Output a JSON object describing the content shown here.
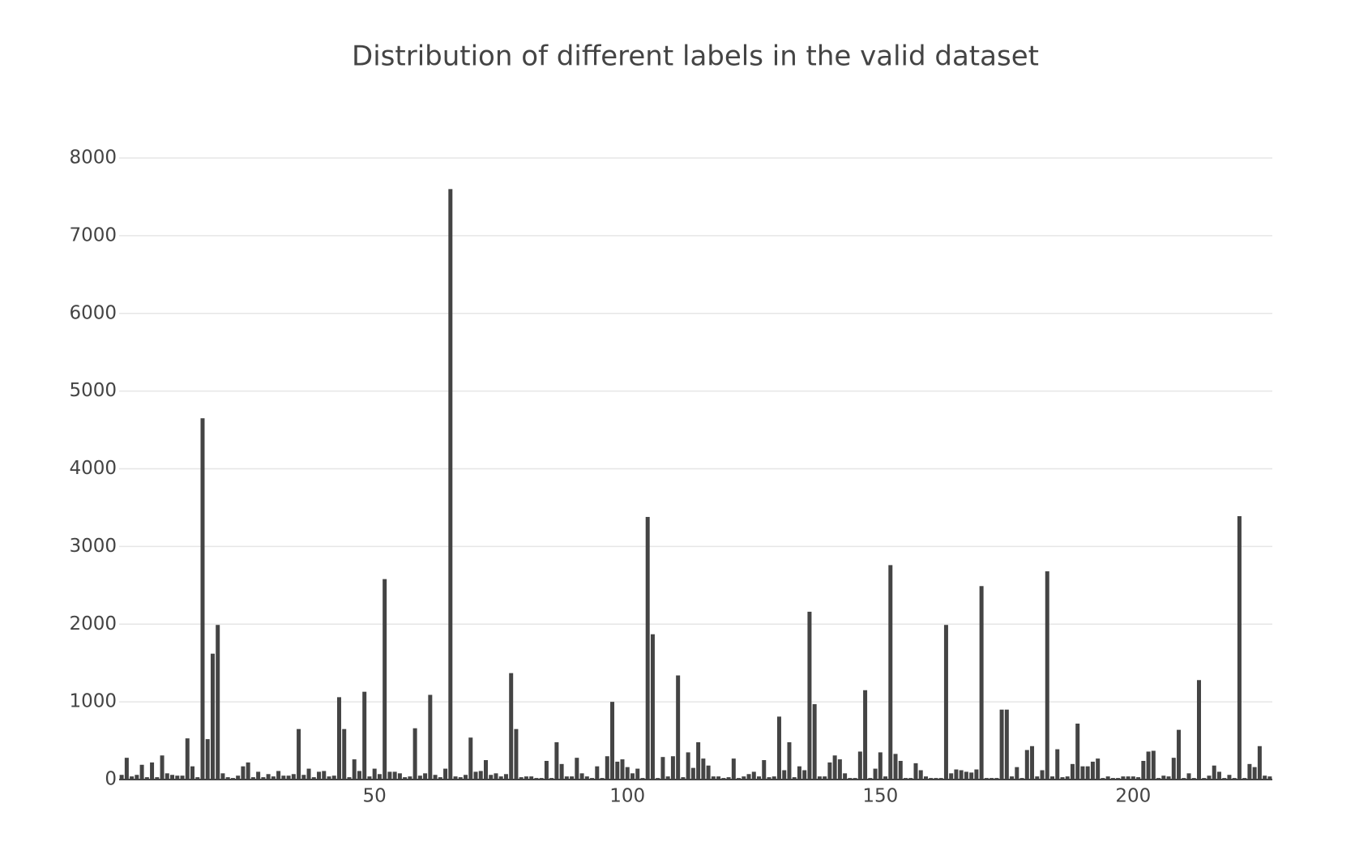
{
  "chart_data": {
    "type": "bar",
    "title": "Distribution of different labels in the valid dataset",
    "x": [
      0,
      1,
      2,
      3,
      4,
      5,
      6,
      7,
      8,
      9,
      10,
      11,
      12,
      13,
      14,
      15,
      16,
      17,
      18,
      19,
      20,
      21,
      22,
      23,
      24,
      25,
      26,
      27,
      28,
      29,
      30,
      31,
      32,
      33,
      34,
      35,
      36,
      37,
      38,
      39,
      40,
      41,
      42,
      43,
      44,
      45,
      46,
      47,
      48,
      49,
      50,
      51,
      52,
      53,
      54,
      55,
      56,
      57,
      58,
      59,
      60,
      61,
      62,
      63,
      64,
      65,
      66,
      67,
      68,
      69,
      70,
      71,
      72,
      73,
      74,
      75,
      76,
      77,
      78,
      79,
      80,
      81,
      82,
      83,
      84,
      85,
      86,
      87,
      88,
      89,
      90,
      91,
      92,
      93,
      94,
      95,
      96,
      97,
      98,
      99,
      100,
      101,
      102,
      103,
      104,
      105,
      106,
      107,
      108,
      109,
      110,
      111,
      112,
      113,
      114,
      115,
      116,
      117,
      118,
      119,
      120,
      121,
      122,
      123,
      124,
      125,
      126,
      127,
      128,
      129,
      130,
      131,
      132,
      133,
      134,
      135,
      136,
      137,
      138,
      139,
      140,
      141,
      142,
      143,
      144,
      145,
      146,
      147,
      148,
      149,
      150,
      151,
      152,
      153,
      154,
      155,
      156,
      157,
      158,
      159,
      160,
      161,
      162,
      163,
      164,
      165,
      166,
      167,
      168,
      169,
      170,
      171,
      172,
      173,
      174,
      175,
      176,
      177,
      178,
      179,
      180,
      181,
      182,
      183,
      184,
      185,
      186,
      187,
      188,
      189,
      190,
      191,
      192,
      193,
      194,
      195,
      196,
      197,
      198,
      199,
      200,
      201,
      202,
      203,
      204,
      205,
      206,
      207,
      208,
      209,
      210,
      211,
      212,
      213,
      214,
      215,
      216,
      217,
      218,
      219,
      220,
      221,
      222,
      223,
      224,
      225,
      226,
      227
    ],
    "values": [
      60,
      280,
      40,
      60,
      190,
      30,
      220,
      30,
      310,
      80,
      60,
      50,
      50,
      530,
      170,
      30,
      4650,
      520,
      1620,
      1990,
      80,
      30,
      20,
      50,
      170,
      220,
      30,
      100,
      30,
      70,
      40,
      110,
      50,
      50,
      70,
      650,
      60,
      140,
      30,
      100,
      110,
      40,
      50,
      1060,
      650,
      30,
      260,
      110,
      1130,
      40,
      140,
      70,
      2580,
      100,
      100,
      80,
      30,
      40,
      660,
      50,
      80,
      1090,
      60,
      30,
      140,
      7600,
      40,
      30,
      60,
      540,
      100,
      110,
      250,
      60,
      80,
      40,
      70,
      1370,
      650,
      30,
      40,
      40,
      20,
      20,
      240,
      20,
      480,
      200,
      40,
      40,
      280,
      80,
      40,
      20,
      170,
      20,
      300,
      1000,
      230,
      260,
      160,
      80,
      140,
      20,
      3380,
      1870,
      20,
      290,
      40,
      300,
      1340,
      30,
      350,
      150,
      480,
      270,
      180,
      40,
      40,
      20,
      30,
      270,
      20,
      40,
      70,
      100,
      40,
      250,
      30,
      40,
      810,
      120,
      480,
      30,
      170,
      120,
      2160,
      970,
      40,
      40,
      220,
      310,
      260,
      80,
      20,
      20,
      360,
      1150,
      20,
      140,
      350,
      40,
      2760,
      330,
      240,
      20,
      20,
      210,
      120,
      40,
      20,
      20,
      20,
      1990,
      80,
      130,
      120,
      100,
      90,
      130,
      2490,
      20,
      20,
      20,
      900,
      900,
      40,
      160,
      20,
      380,
      430,
      40,
      120,
      2680,
      40,
      390,
      30,
      40,
      200,
      720,
      170,
      170,
      230,
      270,
      20,
      40,
      20,
      20,
      40,
      40,
      40,
      30,
      240,
      360,
      370,
      20,
      50,
      40,
      280,
      640,
      20,
      80,
      20,
      1280,
      20,
      50,
      180,
      100,
      20,
      60,
      20,
      3390,
      20,
      200,
      160,
      430,
      50,
      40
    ],
    "color": "#444444",
    "xlim": [
      -0.5,
      227.5
    ],
    "xticks": [
      50,
      100,
      150,
      200
    ],
    "ylim": [
      0,
      8000
    ],
    "yticks": [
      0,
      1000,
      2000,
      3000,
      4000,
      5000,
      6000,
      7000,
      8000
    ],
    "grid": true
  }
}
